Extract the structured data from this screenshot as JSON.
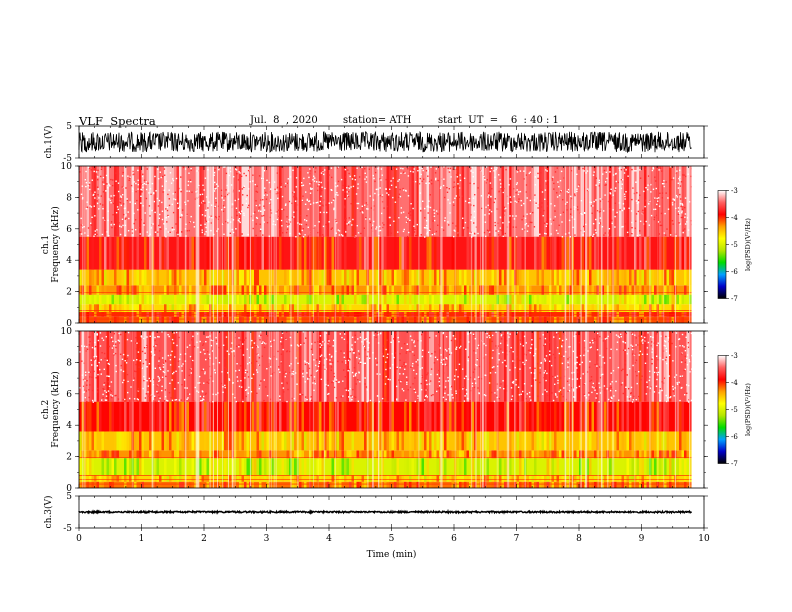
{
  "header": {
    "title": "VLF  Spectra",
    "date": "Jul.  8  , 2020",
    "station": "station= ATH",
    "start": "start  UT  =    6  : 40 : 1"
  },
  "colors": {
    "colorbar": [
      "#000000",
      "#0000c8",
      "#00a0ff",
      "#00dc00",
      "#b4e600",
      "#ffff00",
      "#ffa000",
      "#ff0000",
      "#ff6060",
      "#ffffff"
    ]
  },
  "chart_data": [
    {
      "type": "line",
      "ylabel": "ch.1(V)",
      "xlim": [
        0,
        10
      ],
      "ylim": [
        -5,
        5
      ],
      "yticks": [
        "5",
        "-5"
      ],
      "data_extent_min": 9.8,
      "amplitude": 3.2
    },
    {
      "type": "heatmap",
      "ylabel_channel": "ch.1",
      "ylabel": "Frequency  (kHz)",
      "xlim": [
        0,
        10
      ],
      "ylim": [
        0,
        10
      ],
      "yticks": [
        "0",
        "2",
        "4",
        "6",
        "8",
        "10"
      ],
      "data_extent_min": 9.8,
      "bands": [
        {
          "from": 0.0,
          "to": 0.4,
          "level": -4.1
        },
        {
          "from": 0.4,
          "to": 0.7,
          "level": -4.0
        },
        {
          "from": 0.7,
          "to": 1.2,
          "level": -4.6
        },
        {
          "from": 1.2,
          "to": 1.8,
          "level": -5.0
        },
        {
          "from": 1.8,
          "to": 2.4,
          "level": -4.3
        },
        {
          "from": 2.4,
          "to": 3.4,
          "level": -4.5
        },
        {
          "from": 3.4,
          "to": 5.5,
          "level": -3.8
        },
        {
          "from": 5.5,
          "to": 10.0,
          "level": -3.4
        }
      ],
      "colorbar": {
        "label": "log(PSD)(V²/Hz)",
        "ticks": [
          "-3",
          "-4",
          "-5",
          "-6",
          "-7"
        ],
        "range": [
          -7,
          -3
        ]
      }
    },
    {
      "type": "heatmap",
      "ylabel_channel": "ch.2",
      "ylabel": "Frequency  (kHz)",
      "xlim": [
        0,
        10
      ],
      "ylim": [
        0,
        10
      ],
      "yticks": [
        "0",
        "2",
        "4",
        "6",
        "8",
        "10"
      ],
      "data_extent_min": 9.8,
      "bands": [
        {
          "from": 0.0,
          "to": 0.4,
          "level": -4.2
        },
        {
          "from": 0.4,
          "to": 0.8,
          "level": -4.6
        },
        {
          "from": 0.8,
          "to": 1.9,
          "level": -5.0
        },
        {
          "from": 1.9,
          "to": 2.4,
          "level": -4.3
        },
        {
          "from": 2.4,
          "to": 3.6,
          "level": -4.5
        },
        {
          "from": 3.6,
          "to": 5.5,
          "level": -3.9
        },
        {
          "from": 5.5,
          "to": 10.0,
          "level": -3.5
        }
      ],
      "colorbar": {
        "label": "log(PSD)(V²/Hz)",
        "ticks": [
          "-3",
          "-4",
          "-5",
          "-6",
          "-7"
        ],
        "range": [
          -7,
          -3
        ]
      }
    },
    {
      "type": "line",
      "ylabel": "ch.3(V)",
      "xlabel": "Time  (min)",
      "xlim": [
        0,
        10
      ],
      "xticks": [
        "0",
        "1",
        "2",
        "3",
        "4",
        "5",
        "6",
        "7",
        "8",
        "9",
        "10"
      ],
      "ylim": [
        -5,
        5
      ],
      "yticks": [
        "5",
        "-5"
      ],
      "data_extent_min": 9.8,
      "amplitude": 0.25,
      "offset": 0.0
    }
  ]
}
